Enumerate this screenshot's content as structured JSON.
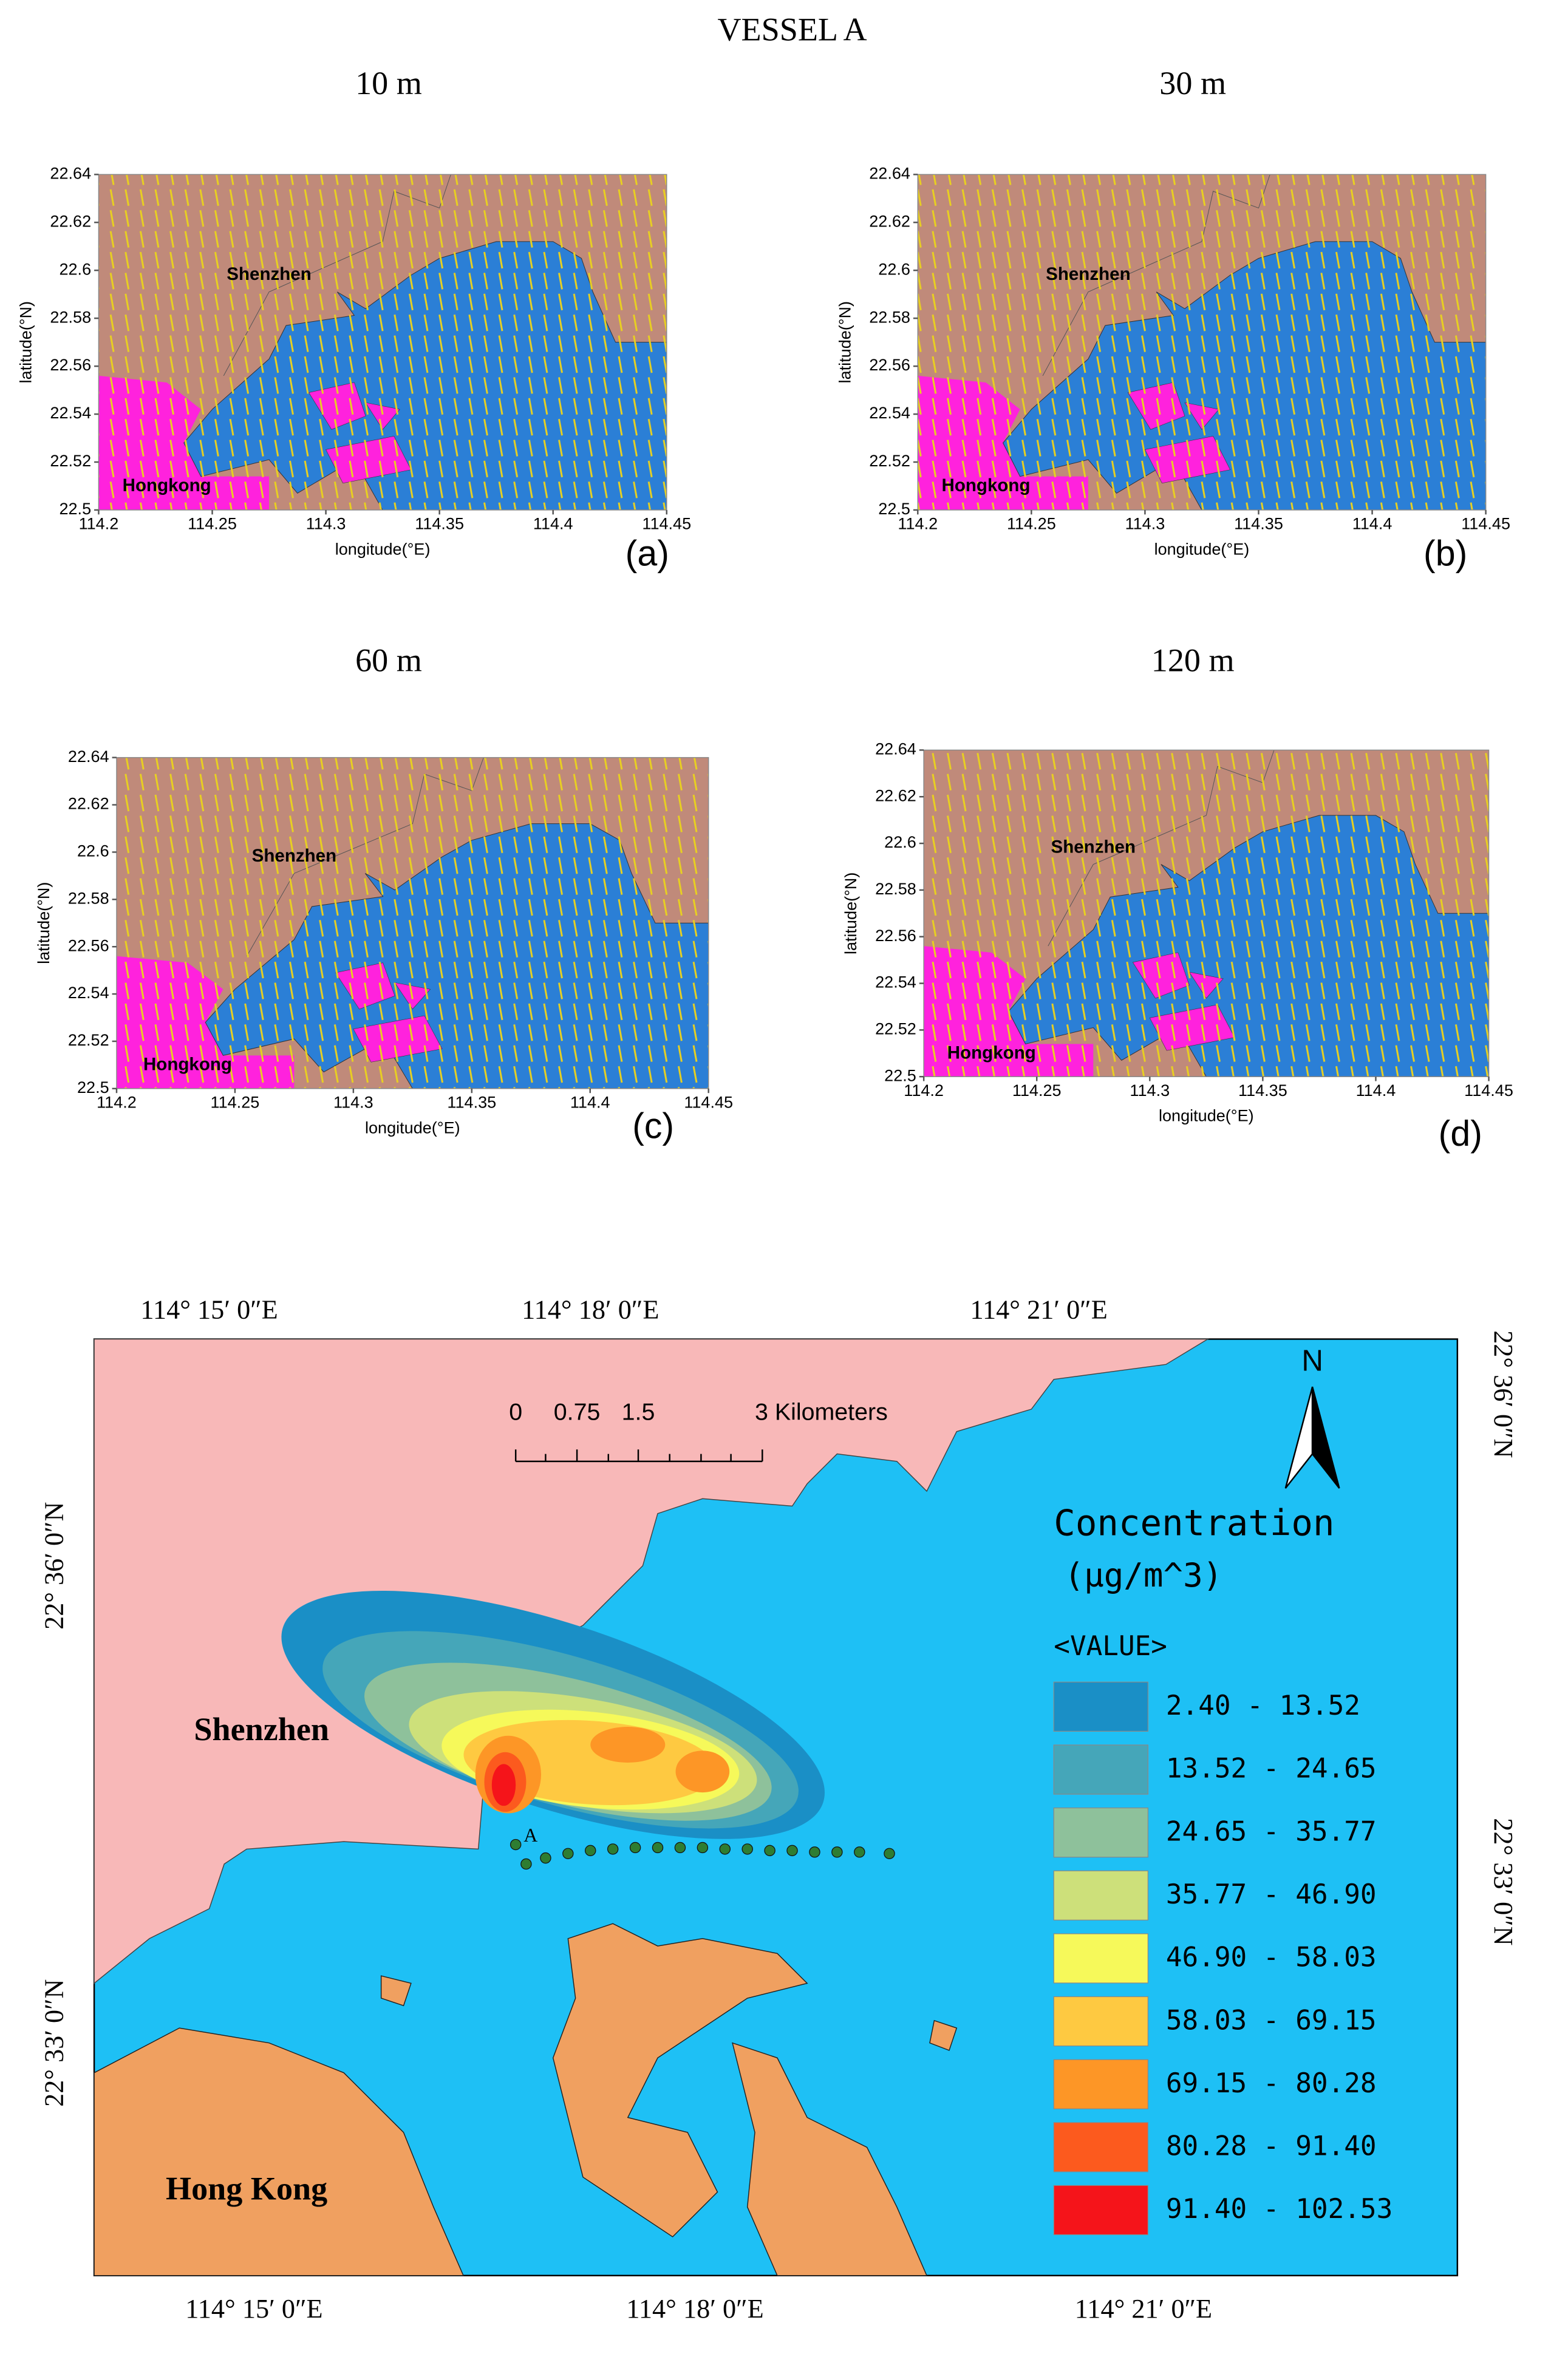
{
  "title": "VESSEL A",
  "panels": [
    {
      "title": "10 m",
      "letter": "(a)"
    },
    {
      "title": "30 m",
      "letter": "(b)"
    },
    {
      "title": "60 m",
      "letter": "(c)"
    },
    {
      "title": "120 m",
      "letter": "(d)"
    }
  ],
  "panel_axes": {
    "xlabel": "longitude(°E)",
    "ylabel": "latitude(°N)",
    "xlim": [
      114.2,
      114.45
    ],
    "ylim": [
      22.5,
      22.64
    ],
    "xticks": [
      114.2,
      114.25,
      114.3,
      114.35,
      114.4,
      114.45
    ],
    "yticks": [
      22.5,
      22.52,
      22.54,
      22.56,
      22.58,
      22.6,
      22.62,
      22.64
    ],
    "north_place": "Shenzhen",
    "south_place": "Hongkong"
  },
  "map": {
    "top_labels": [
      "114°  15′ 0″E",
      "114°  18′ 0″E",
      "114°  21′ 0″E"
    ],
    "bottom_labels": [
      "114°  15′ 0″E",
      "114°  18′ 0″E",
      "114°  21′ 0″E"
    ],
    "left_labels": [
      "22°  36′ 0″N",
      "22°  33′ 0″N"
    ],
    "right_labels": [
      "22°  36′ 0″N",
      "22°  33′ 0″N"
    ],
    "north_place": "Shenzhen",
    "south_place": "Hong Kong",
    "vessel": "A",
    "north_arrow": "N",
    "scale_bar": [
      "0",
      "0.75",
      "1.5",
      "3 Kilometers"
    ],
    "legend": {
      "title": "Concentration",
      "units": "(μg/m^3)",
      "header": "<VALUE>",
      "items": [
        {
          "label": "2.40 - 13.52",
          "color": "#1a8fc6"
        },
        {
          "label": "13.52 - 24.65",
          "color": "#45a6b9"
        },
        {
          "label": "24.65 - 35.77",
          "color": "#8ec19b"
        },
        {
          "label": "35.77 - 46.90",
          "color": "#cde07a"
        },
        {
          "label": "46.90 - 58.03",
          "color": "#f6f95a"
        },
        {
          "label": "58.03 - 69.15",
          "color": "#fec941"
        },
        {
          "label": "69.15 - 80.28",
          "color": "#fd9626"
        },
        {
          "label": "80.28 - 91.40",
          "color": "#fc5a1e"
        },
        {
          "label": "91.40 - 102.53",
          "color": "#f5141a"
        }
      ]
    }
  }
}
